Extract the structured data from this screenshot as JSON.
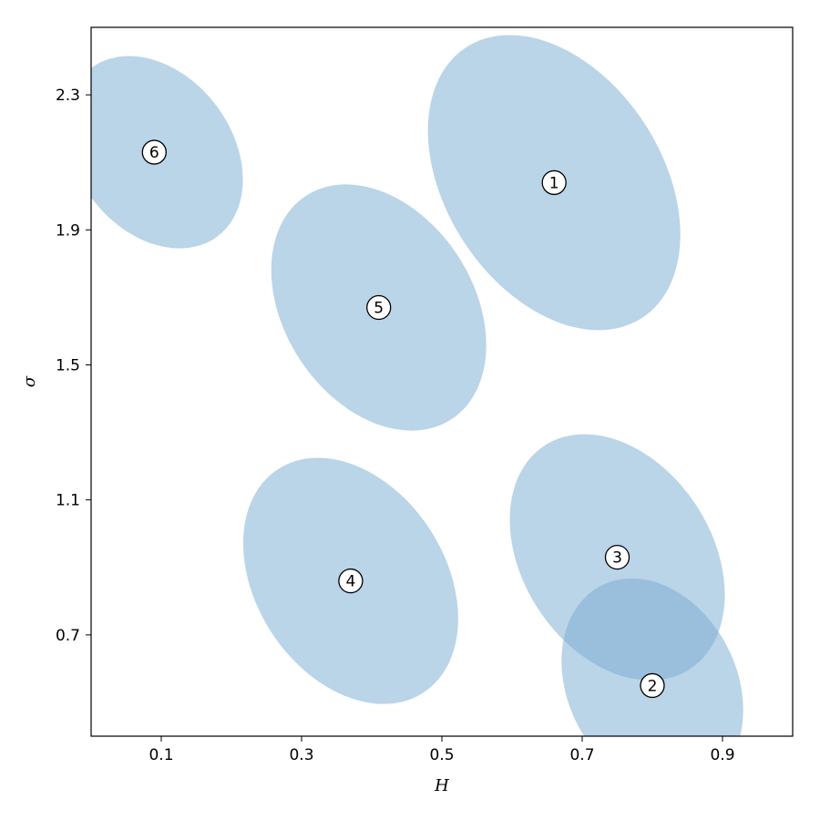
{
  "chart_data": {
    "type": "scatter",
    "title": "",
    "xlabel": "H",
    "ylabel": "σ",
    "xlim": [
      0.0,
      1.0
    ],
    "ylim": [
      0.4,
      2.5
    ],
    "xticks": [
      0.1,
      0.3,
      0.5,
      0.7,
      0.9
    ],
    "yticks": [
      0.7,
      1.1,
      1.5,
      1.9,
      2.3
    ],
    "xtick_labels": [
      "0.1",
      "0.3",
      "0.5",
      "0.7",
      "0.9"
    ],
    "ytick_labels": [
      "0.7",
      "1.1",
      "1.5",
      "1.9",
      "2.3"
    ],
    "grid": false,
    "ellipse_color": "#7aadd3",
    "clusters": [
      {
        "label": "1",
        "center": [
          0.66,
          2.04
        ],
        "semi_axes": [
          0.23,
          0.32
        ],
        "angle_deg": 33
      },
      {
        "label": "2",
        "center": [
          0.8,
          0.55
        ],
        "semi_axes": [
          0.16,
          0.25
        ],
        "angle_deg": 27
      },
      {
        "label": "3",
        "center": [
          0.75,
          0.93
        ],
        "semi_axes": [
          0.19,
          0.28
        ],
        "angle_deg": 33
      },
      {
        "label": "4",
        "center": [
          0.37,
          0.86
        ],
        "semi_axes": [
          0.19,
          0.28
        ],
        "angle_deg": 33
      },
      {
        "label": "5",
        "center": [
          0.41,
          1.67
        ],
        "semi_axes": [
          0.19,
          0.28
        ],
        "angle_deg": 33
      },
      {
        "label": "6",
        "center": [
          0.09,
          2.13
        ],
        "semi_axes": [
          0.15,
          0.23
        ],
        "angle_deg": 37
      }
    ]
  }
}
